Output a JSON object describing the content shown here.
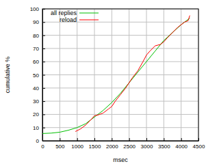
{
  "chart_data": {
    "type": "line",
    "x_label": "msec",
    "y_label": "cumulative %",
    "series": [
      {
        "name": "all replies",
        "color": "#00c000",
        "x": [
          0,
          250,
          500,
          750,
          1000,
          1250,
          1500,
          1750,
          2000,
          2250,
          2500,
          2750,
          3000,
          3250,
          3500,
          3750,
          4000,
          4250
        ],
        "values": [
          5.5,
          5.8,
          6.5,
          8,
          10,
          13,
          18,
          23,
          29,
          36,
          44,
          52,
          60,
          68,
          76,
          82,
          88,
          93
        ]
      },
      {
        "name": "reload",
        "color": "#ff0000",
        "x": [
          950,
          1100,
          1250,
          1400,
          1500,
          1600,
          1750,
          1900,
          2000,
          2100,
          2250,
          2400,
          2500,
          2600,
          2750,
          2900,
          3000,
          3100,
          3250,
          3400,
          3500,
          3600,
          3750,
          3900,
          4000,
          4100,
          4200,
          4250
        ],
        "values": [
          7,
          9,
          12,
          16,
          19,
          19.5,
          21,
          24,
          26,
          30,
          35,
          40,
          44,
          48,
          53,
          60,
          65,
          68,
          72,
          73,
          75,
          78,
          82,
          86,
          88,
          90,
          91,
          95
        ]
      }
    ],
    "xlim": [
      0,
      4500
    ],
    "xticks": [
      0,
      500,
      1000,
      1500,
      2000,
      2500,
      3000,
      3500,
      4000,
      4500
    ],
    "ylim": [
      0,
      100
    ],
    "yticks": [
      0,
      10,
      20,
      30,
      40,
      50,
      60,
      70,
      80,
      90,
      100
    ],
    "grid": true,
    "legend": "upper left"
  }
}
